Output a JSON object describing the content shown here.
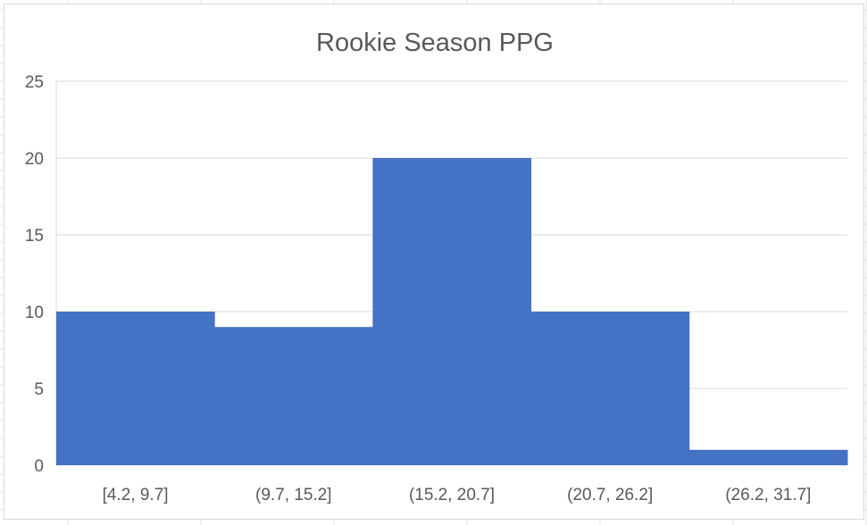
{
  "chart_data": {
    "type": "bar",
    "title": "Rookie Season PPG",
    "xlabel": "",
    "ylabel": "",
    "categories": [
      "[4.2, 9.7]",
      "(9.7, 15.2]",
      "(15.2, 20.7]",
      "(20.7, 26.2]",
      "(26.2, 31.7]"
    ],
    "values": [
      10,
      9,
      20,
      10,
      1
    ],
    "ylim": [
      0,
      25
    ],
    "yticks": [
      0,
      5,
      10,
      15,
      20,
      25
    ],
    "grid": true,
    "legend": "none",
    "bar_gap": 0,
    "colors": {
      "bar": "#4472C4",
      "grid": "#d9d9d9",
      "text": "#595959"
    }
  }
}
